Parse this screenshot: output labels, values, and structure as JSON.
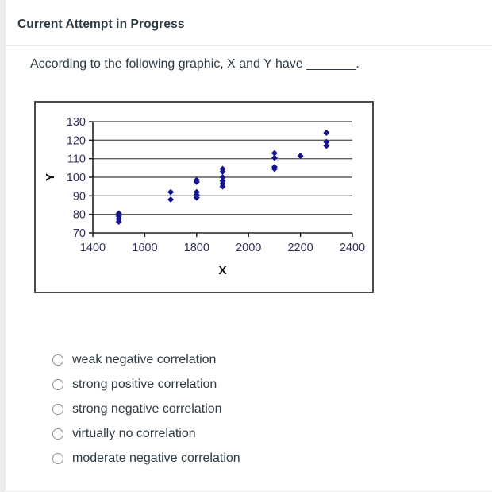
{
  "page": {
    "header": "Current Attempt in Progress",
    "question": "According to the following graphic, X and Y have _______."
  },
  "chart_data": {
    "type": "scatter",
    "title": "",
    "xlabel": "X",
    "ylabel": "Y",
    "xlim": [
      1400,
      2400
    ],
    "ylim": [
      70,
      130
    ],
    "x_ticks": [
      1400,
      1600,
      1800,
      2000,
      2200,
      2400
    ],
    "y_ticks": [
      70,
      80,
      90,
      100,
      110,
      120,
      130
    ],
    "grid": "horizontal-only",
    "legend": "none",
    "marker": {
      "shape": "diamond",
      "color": "#14148c",
      "size": 8
    },
    "points": [
      {
        "x": 1500,
        "y": 76
      },
      {
        "x": 1500,
        "y": 77.5
      },
      {
        "x": 1500,
        "y": 79
      },
      {
        "x": 1500,
        "y": 80.5
      },
      {
        "x": 1700,
        "y": 88
      },
      {
        "x": 1700,
        "y": 92
      },
      {
        "x": 1800,
        "y": 89
      },
      {
        "x": 1800,
        "y": 90.5
      },
      {
        "x": 1800,
        "y": 92
      },
      {
        "x": 1800,
        "y": 97.5
      },
      {
        "x": 1800,
        "y": 98.5
      },
      {
        "x": 1900,
        "y": 95
      },
      {
        "x": 1900,
        "y": 96.5
      },
      {
        "x": 1900,
        "y": 98
      },
      {
        "x": 1900,
        "y": 100
      },
      {
        "x": 1900,
        "y": 103
      },
      {
        "x": 1900,
        "y": 104.5
      },
      {
        "x": 2100,
        "y": 104.5
      },
      {
        "x": 2100,
        "y": 105.5
      },
      {
        "x": 2100,
        "y": 110.5
      },
      {
        "x": 2100,
        "y": 113
      },
      {
        "x": 2200,
        "y": 111.5
      },
      {
        "x": 2300,
        "y": 117
      },
      {
        "x": 2300,
        "y": 119
      },
      {
        "x": 2300,
        "y": 124
      }
    ],
    "colors": {
      "marker": "#14148c",
      "gridline": "#5f5f5f",
      "axis": "#222222",
      "tick_label": "#30305e",
      "axis_title": "#111111",
      "frame_border": "#4c4c4c"
    }
  },
  "options": [
    {
      "label": "weak negative correlation",
      "selected": false
    },
    {
      "label": "strong positive correlation",
      "selected": false
    },
    {
      "label": "strong negative correlation",
      "selected": false
    },
    {
      "label": "virtually no correlation",
      "selected": false
    },
    {
      "label": "moderate negative correlation",
      "selected": false
    }
  ],
  "colors": {
    "text": "#2d3b45",
    "divider": "#e8e8e8",
    "left_strip": "#ececec",
    "background": "#ffffff",
    "radio_border": "#8f8f8f"
  }
}
